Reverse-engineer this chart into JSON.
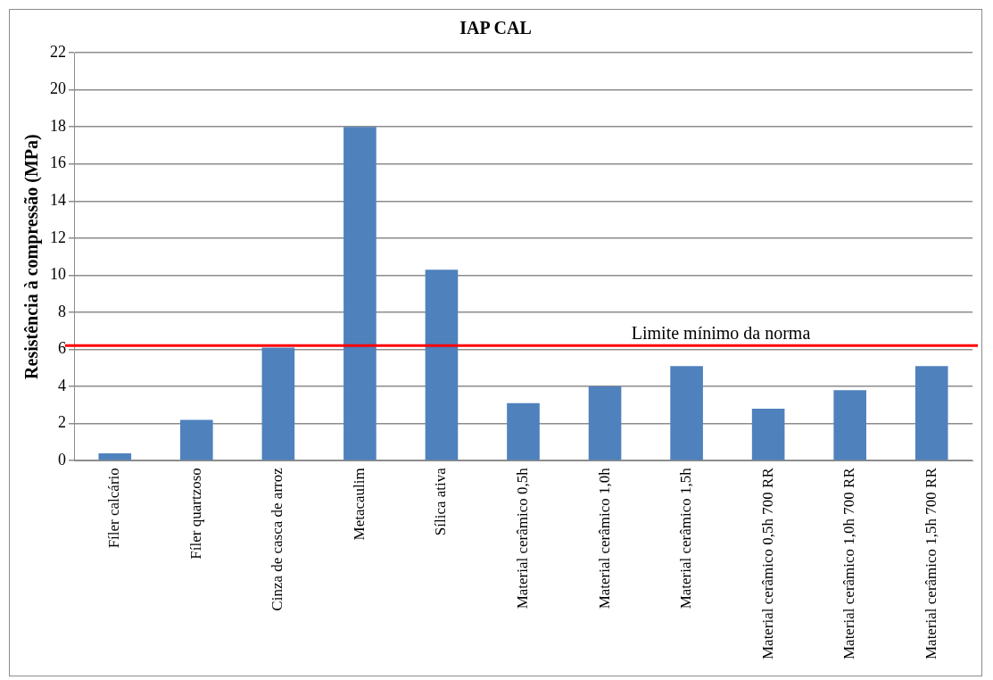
{
  "chart_data": {
    "type": "bar",
    "title": "IAP CAL",
    "ylabel": "Resistência à compressão (MPa)",
    "categories": [
      "Fíler calcário",
      "Fíler quartzoso",
      "Cinza de casca de arroz",
      "Metacaulim",
      "Sílica ativa",
      "Material cerâmico 0,5h",
      "Material cerâmico 1,0h",
      "Material cerâmico 1,5h",
      "Material cerâmico 0,5h 700 RR",
      "Material cerâmico 1,0h 700 RR",
      "Material cerâmico 1,5h 700 RR"
    ],
    "values": [
      0.4,
      2.2,
      6.1,
      18,
      10.3,
      3.1,
      4.0,
      5.1,
      2.8,
      3.8,
      5.1
    ],
    "color": "#4f81bd",
    "ylim": [
      0,
      22
    ],
    "yticks": [
      0,
      2,
      4,
      6,
      8,
      10,
      12,
      14,
      16,
      18,
      20,
      22
    ],
    "grid": "y",
    "legend": false,
    "ref_lines": [
      {
        "axis": "y",
        "value": 6.2,
        "label": "Limite mínimo da norma",
        "color": "#ff0000"
      }
    ]
  }
}
